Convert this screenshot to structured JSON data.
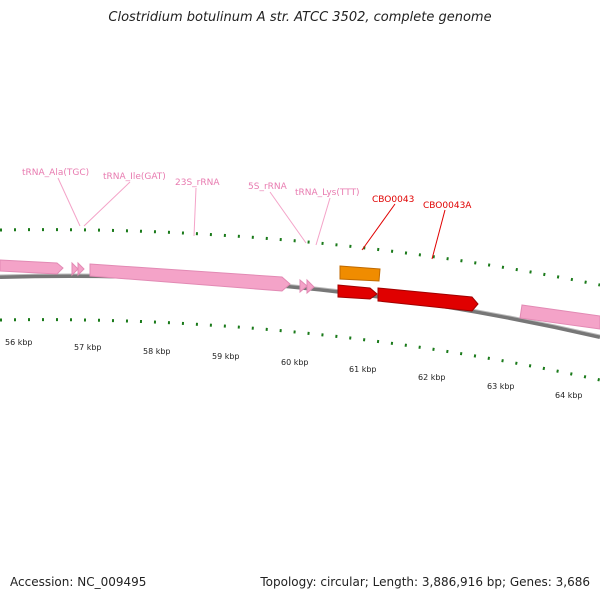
{
  "title": "Clostridium botulinum A str. ATCC 3502, complete genome",
  "footer": {
    "accession": "Accession: NC_009495",
    "topology": "Topology: circular; Length: 3,886,916 bp; Genes: 3,686"
  },
  "colors": {
    "rna": "#f4a3c8",
    "rna_label": "#e87bb0",
    "cds_red": "#e00000",
    "cds_orange": "#f08c00",
    "tick": "#1a7a1a",
    "backbone": "#777777"
  },
  "ticks": [
    {
      "label": "56 kbp"
    },
    {
      "label": "57 kbp"
    },
    {
      "label": "58 kbp"
    },
    {
      "label": "59 kbp"
    },
    {
      "label": "60 kbp"
    },
    {
      "label": "61 kbp"
    },
    {
      "label": "62 kbp"
    },
    {
      "label": "63 kbp"
    },
    {
      "label": "64 kbp"
    }
  ],
  "features": [
    {
      "name": "tRNA_Ala(TGC)",
      "type": "rna"
    },
    {
      "name": "tRNA_Ile(GAT)",
      "type": "rna"
    },
    {
      "name": "23S_rRNA",
      "type": "rna"
    },
    {
      "name": "5S_rRNA",
      "type": "rna"
    },
    {
      "name": "tRNA_Lys(TTT)",
      "type": "rna"
    },
    {
      "name": "CBO0043",
      "type": "cds"
    },
    {
      "name": "CBO0043A",
      "type": "cds"
    }
  ]
}
